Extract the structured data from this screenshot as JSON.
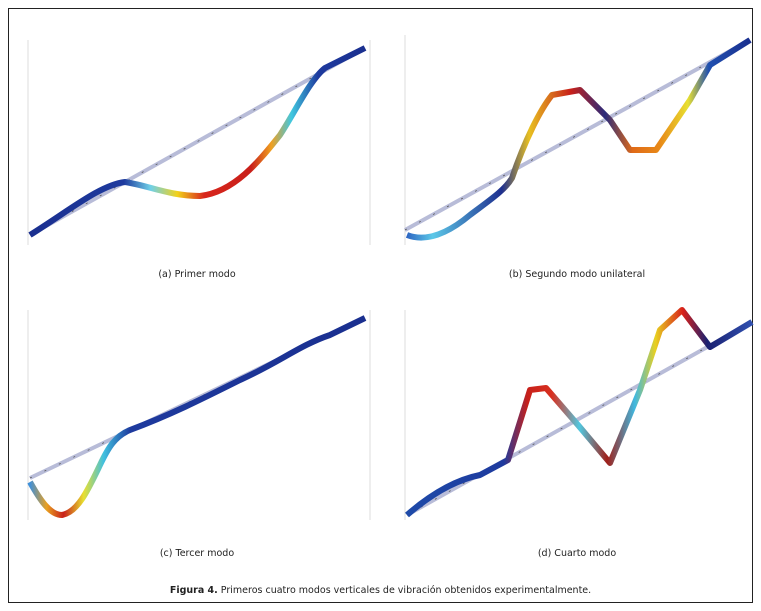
{
  "panels": [
    {
      "caption": "(a) Primer modo"
    },
    {
      "caption": "(b) Segundo modo unilateral"
    },
    {
      "caption": "(c) Tercer modo"
    },
    {
      "caption": "(d) Cuarto modo"
    }
  ],
  "figure_caption": {
    "label": "Figura 4.",
    "text": "Primeros cuatro modos verticales de vibración obtenidos experimentalmente."
  }
}
